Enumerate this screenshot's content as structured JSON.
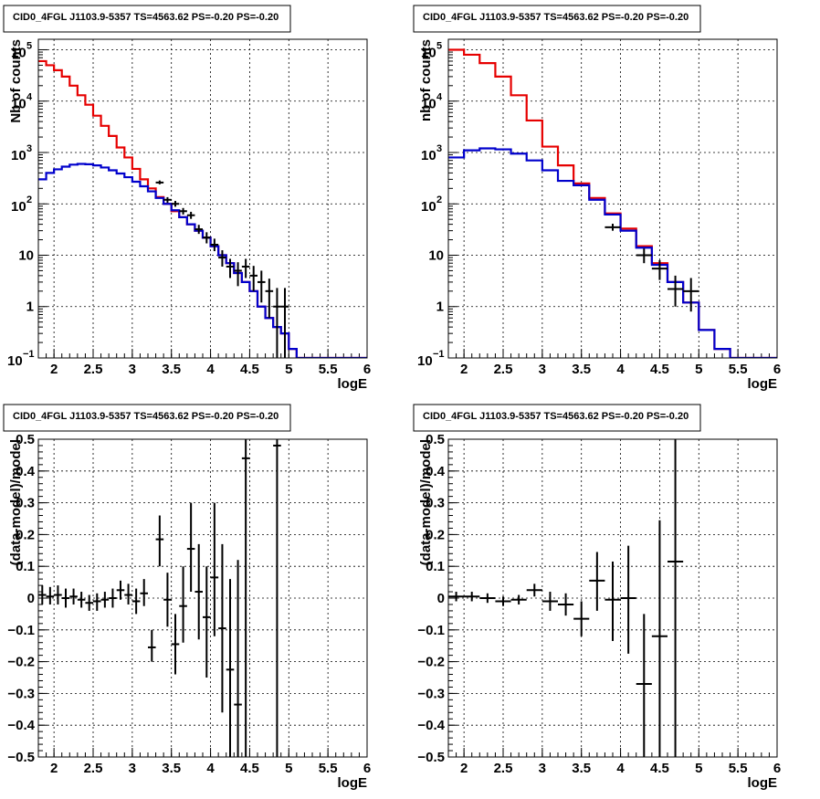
{
  "chart_data": [
    {
      "type": "line",
      "title": "CID0_4FGL J1103.9-5357 TS=4563.62 PS=-0.20 PS=-0.20",
      "xlabel": "logE",
      "ylabel": "Nb of counts",
      "xlim": [
        1.8,
        6
      ],
      "ylim": [
        0.1,
        160000
      ],
      "yscale": "log",
      "grid": true,
      "x_ticks": [
        "2",
        "2.5",
        "3",
        "3.5",
        "4",
        "4.5",
        "5",
        "5.5",
        "6"
      ],
      "y_ticks": [
        {
          "value": 0.1,
          "base": "10",
          "exp": "−1"
        },
        {
          "value": 1,
          "label": "1"
        },
        {
          "value": 10,
          "label": "10"
        },
        {
          "value": 100,
          "base": "10",
          "exp": "2"
        },
        {
          "value": 1000,
          "base": "10",
          "exp": "3"
        },
        {
          "value": 10000,
          "base": "10",
          "exp": "4"
        },
        {
          "value": 100000,
          "base": "10",
          "exp": "5"
        }
      ],
      "bin_edges": [
        1.8,
        1.9,
        2.0,
        2.1,
        2.2,
        2.3,
        2.4,
        2.5,
        2.6,
        2.7,
        2.8,
        2.9,
        3.0,
        3.1,
        3.2,
        3.3,
        3.4,
        3.5,
        3.6,
        3.7,
        3.8,
        3.9,
        4.0,
        4.1,
        4.2,
        4.3,
        4.4,
        4.5,
        4.6,
        4.7,
        4.8,
        4.9,
        5.0,
        5.1,
        5.2,
        5.3,
        5.4,
        5.5,
        5.6,
        5.7,
        5.8,
        5.9,
        6.0
      ],
      "series": [
        {
          "color": "#e60000",
          "style": "step",
          "values": [
            60000,
            50000,
            40000,
            30000,
            20000,
            13000,
            8500,
            5200,
            3300,
            2100,
            1250,
            800,
            480,
            300,
            200,
            135,
            100,
            72,
            55,
            40,
            30,
            22,
            15,
            10,
            7,
            4.5,
            3,
            2,
            1,
            0.6,
            0.4,
            0.3,
            0.15,
            0.1,
            0.1,
            0.1,
            0.1,
            0.1,
            0.1,
            0.1,
            0.1,
            0.1
          ]
        },
        {
          "color": "#0000cc",
          "style": "step",
          "values": [
            300,
            400,
            470,
            530,
            580,
            600,
            590,
            560,
            510,
            450,
            390,
            330,
            270,
            220,
            175,
            130,
            100,
            75,
            55,
            40,
            30,
            22,
            15,
            10,
            7,
            4.5,
            3,
            2,
            1,
            0.6,
            0.4,
            0.3,
            0.15,
            0.1,
            0.1,
            0.1,
            0.1,
            0.1,
            0.1,
            0.1,
            0.1,
            0.1
          ]
        },
        {
          "color": "#000000",
          "style": "points",
          "points": [
            {
              "x": 3.35,
              "y": 260,
              "xerr": 0.05,
              "lo": 240,
              "hi": 285
            },
            {
              "x": 3.45,
              "y": 120,
              "xerr": 0.05,
              "lo": 105,
              "hi": 135
            },
            {
              "x": 3.55,
              "y": 100,
              "xerr": 0.05,
              "lo": 88,
              "hi": 114
            },
            {
              "x": 3.65,
              "y": 72,
              "xerr": 0.05,
              "lo": 62,
              "hi": 83
            },
            {
              "x": 3.75,
              "y": 60,
              "xerr": 0.05,
              "lo": 51,
              "hi": 70
            },
            {
              "x": 3.85,
              "y": 32,
              "xerr": 0.05,
              "lo": 26,
              "hi": 39
            },
            {
              "x": 3.95,
              "y": 22,
              "xerr": 0.05,
              "lo": 17,
              "hi": 28
            },
            {
              "x": 4.05,
              "y": 16,
              "xerr": 0.05,
              "lo": 12,
              "hi": 21
            },
            {
              "x": 4.15,
              "y": 9,
              "xerr": 0.05,
              "lo": 6,
              "hi": 12.5
            },
            {
              "x": 4.25,
              "y": 6,
              "xerr": 0.05,
              "lo": 3.6,
              "hi": 8.5
            },
            {
              "x": 4.35,
              "y": 5,
              "xerr": 0.05,
              "lo": 2.5,
              "hi": 7.3
            },
            {
              "x": 4.45,
              "y": 6,
              "xerr": 0.05,
              "lo": 3.6,
              "hi": 8.5
            },
            {
              "x": 4.55,
              "y": 4,
              "xerr": 0.05,
              "lo": 2.0,
              "hi": 6.2
            },
            {
              "x": 4.65,
              "y": 3,
              "xerr": 0.05,
              "lo": 1.2,
              "hi": 5.0
            },
            {
              "x": 4.75,
              "y": 2,
              "xerr": 0.05,
              "lo": 0.6,
              "hi": 3.5
            },
            {
              "x": 4.85,
              "y": 1,
              "xerr": 0.05,
              "lo": 0.1,
              "hi": 2.3
            },
            {
              "x": 4.95,
              "y": 1,
              "xerr": 0.05,
              "lo": 0.1,
              "hi": 2.3
            }
          ]
        }
      ]
    },
    {
      "type": "line",
      "title": "CID0_4FGL J1103.9-5357 TS=4563.62 PS=-0.20 PS=-0.20",
      "xlabel": "logE",
      "ylabel": "nb of counts",
      "xlim": [
        1.8,
        6
      ],
      "ylim": [
        0.1,
        160000
      ],
      "yscale": "log",
      "grid": true,
      "x_ticks": [
        "2",
        "2.5",
        "3",
        "3.5",
        "4",
        "4.5",
        "5",
        "5.5",
        "6"
      ],
      "y_ticks": [
        {
          "value": 0.1,
          "base": "10",
          "exp": "−1"
        },
        {
          "value": 1,
          "label": "1"
        },
        {
          "value": 10,
          "label": "10"
        },
        {
          "value": 100,
          "base": "10",
          "exp": "2"
        },
        {
          "value": 1000,
          "base": "10",
          "exp": "3"
        },
        {
          "value": 10000,
          "base": "10",
          "exp": "4"
        },
        {
          "value": 100000,
          "base": "10",
          "exp": "5"
        }
      ],
      "bin_edges": [
        1.8,
        2.0,
        2.2,
        2.4,
        2.6,
        2.8,
        3.0,
        3.2,
        3.4,
        3.6,
        3.8,
        4.0,
        4.2,
        4.4,
        4.6,
        4.8,
        5.0,
        5.2,
        5.4,
        5.6,
        5.8,
        6.0
      ],
      "series": [
        {
          "color": "#e60000",
          "style": "step",
          "values": [
            100000,
            80000,
            55000,
            30000,
            13000,
            4200,
            1300,
            560,
            250,
            130,
            65,
            33,
            15,
            7,
            3,
            1.2,
            0.35,
            0.15,
            0.1,
            0.1,
            0.1
          ]
        },
        {
          "color": "#0000cc",
          "style": "step",
          "values": [
            800,
            1100,
            1200,
            1150,
            950,
            700,
            450,
            280,
            230,
            120,
            62,
            30,
            14,
            6.5,
            3,
            1.2,
            0.35,
            0.15,
            0.1,
            0.1,
            0.1
          ]
        },
        {
          "color": "#000000",
          "style": "points",
          "points": [
            {
              "x": 3.9,
              "y": 35,
              "xerr": 0.1,
              "lo": 30,
              "hi": 41
            },
            {
              "x": 4.3,
              "y": 10,
              "xerr": 0.1,
              "lo": 7,
              "hi": 13.5
            },
            {
              "x": 4.5,
              "y": 5.5,
              "xerr": 0.1,
              "lo": 3.3,
              "hi": 8
            },
            {
              "x": 4.7,
              "y": 2.2,
              "xerr": 0.1,
              "lo": 1.0,
              "hi": 4.0
            },
            {
              "x": 4.9,
              "y": 2,
              "xerr": 0.1,
              "lo": 0.8,
              "hi": 3.6
            }
          ]
        }
      ]
    },
    {
      "type": "scatter",
      "title": "CID0_4FGL J1103.9-5357 TS=4563.62 PS=-0.20 PS=-0.20",
      "xlabel": "logE",
      "ylabel": "(data-model)/model",
      "xlim": [
        1.8,
        6
      ],
      "ylim": [
        -0.5,
        0.5
      ],
      "grid": true,
      "x_ticks": [
        "2",
        "2.5",
        "3",
        "3.5",
        "4",
        "4.5",
        "5",
        "5.5",
        "6"
      ],
      "y_ticks": [
        "−0.5",
        "−0.4",
        "−0.3",
        "−0.2",
        "−0.1",
        "0",
        "0.1",
        "0.2",
        "0.3",
        "0.4",
        "0.5"
      ],
      "series": [
        {
          "color": "#000000",
          "style": "points",
          "points": [
            {
              "x": 1.85,
              "y": 0.01,
              "xerr": 0.05,
              "lo": -0.02,
              "hi": 0.04
            },
            {
              "x": 1.95,
              "y": 0.005,
              "xerr": 0.05,
              "lo": -0.02,
              "hi": 0.035
            },
            {
              "x": 2.05,
              "y": 0.01,
              "xerr": 0.05,
              "lo": -0.02,
              "hi": 0.04
            },
            {
              "x": 2.15,
              "y": 0.0,
              "xerr": 0.05,
              "lo": -0.03,
              "hi": 0.03
            },
            {
              "x": 2.25,
              "y": 0.005,
              "xerr": 0.05,
              "lo": -0.02,
              "hi": 0.03
            },
            {
              "x": 2.35,
              "y": -0.005,
              "xerr": 0.05,
              "lo": -0.03,
              "hi": 0.02
            },
            {
              "x": 2.45,
              "y": -0.015,
              "xerr": 0.05,
              "lo": -0.04,
              "hi": 0.01
            },
            {
              "x": 2.55,
              "y": -0.01,
              "xerr": 0.05,
              "lo": -0.04,
              "hi": 0.015
            },
            {
              "x": 2.65,
              "y": -0.005,
              "xerr": 0.05,
              "lo": -0.03,
              "hi": 0.02
            },
            {
              "x": 2.75,
              "y": 0.0,
              "xerr": 0.05,
              "lo": -0.03,
              "hi": 0.03
            },
            {
              "x": 2.85,
              "y": 0.025,
              "xerr": 0.05,
              "lo": -0.005,
              "hi": 0.055
            },
            {
              "x": 2.95,
              "y": 0.01,
              "xerr": 0.05,
              "lo": -0.02,
              "hi": 0.045
            },
            {
              "x": 3.05,
              "y": -0.01,
              "xerr": 0.05,
              "lo": -0.05,
              "hi": 0.03
            },
            {
              "x": 3.15,
              "y": 0.015,
              "xerr": 0.05,
              "lo": -0.025,
              "hi": 0.06
            },
            {
              "x": 3.25,
              "y": -0.155,
              "xerr": 0.05,
              "lo": -0.2,
              "hi": -0.1
            },
            {
              "x": 3.35,
              "y": 0.185,
              "xerr": 0.05,
              "lo": 0.1,
              "hi": 0.26
            },
            {
              "x": 3.45,
              "y": -0.005,
              "xerr": 0.05,
              "lo": -0.09,
              "hi": 0.08
            },
            {
              "x": 3.55,
              "y": -0.145,
              "xerr": 0.05,
              "lo": -0.24,
              "hi": -0.05
            },
            {
              "x": 3.65,
              "y": -0.025,
              "xerr": 0.05,
              "lo": -0.14,
              "hi": 0.1
            },
            {
              "x": 3.75,
              "y": 0.155,
              "xerr": 0.05,
              "lo": 0.02,
              "hi": 0.3
            },
            {
              "x": 3.85,
              "y": 0.02,
              "xerr": 0.05,
              "lo": -0.13,
              "hi": 0.17
            },
            {
              "x": 3.95,
              "y": -0.06,
              "xerr": 0.05,
              "lo": -0.25,
              "hi": 0.1
            },
            {
              "x": 4.05,
              "y": 0.065,
              "xerr": 0.05,
              "lo": -0.12,
              "hi": 0.3
            },
            {
              "x": 4.15,
              "y": -0.095,
              "xerr": 0.05,
              "lo": -0.36,
              "hi": 0.17
            },
            {
              "x": 4.25,
              "y": -0.225,
              "xerr": 0.05,
              "lo": -0.5,
              "hi": 0.06
            },
            {
              "x": 4.35,
              "y": -0.335,
              "xerr": 0.05,
              "lo": -0.5,
              "hi": 0.12
            },
            {
              "x": 4.45,
              "y": 0.44,
              "xerr": 0.05,
              "lo": -0.5,
              "hi": 0.5
            },
            {
              "x": 4.85,
              "y": 0.48,
              "xerr": 0.05,
              "lo": -0.5,
              "hi": 0.5
            }
          ]
        }
      ]
    },
    {
      "type": "scatter",
      "title": "CID0_4FGL J1103.9-5357 TS=4563.62 PS=-0.20 PS=-0.20",
      "xlabel": "logE",
      "ylabel": "(data-model)/model",
      "xlim": [
        1.8,
        6
      ],
      "ylim": [
        -0.5,
        0.5
      ],
      "grid": true,
      "x_ticks": [
        "2",
        "2.5",
        "3",
        "3.5",
        "4",
        "4.5",
        "5",
        "5.5",
        "6"
      ],
      "y_ticks": [
        "−0.5",
        "−0.4",
        "−0.3",
        "−0.2",
        "−0.1",
        "0",
        "0.1",
        "0.2",
        "0.3",
        "0.4",
        "0.5"
      ],
      "series": [
        {
          "color": "#000000",
          "style": "points",
          "points": [
            {
              "x": 1.9,
              "y": 0.005,
              "xerr": 0.1,
              "lo": -0.01,
              "hi": 0.02
            },
            {
              "x": 2.1,
              "y": 0.005,
              "xerr": 0.1,
              "lo": -0.01,
              "hi": 0.02
            },
            {
              "x": 2.3,
              "y": 0.0,
              "xerr": 0.1,
              "lo": -0.015,
              "hi": 0.015
            },
            {
              "x": 2.5,
              "y": -0.01,
              "xerr": 0.1,
              "lo": -0.025,
              "hi": 0.005
            },
            {
              "x": 2.7,
              "y": -0.005,
              "xerr": 0.1,
              "lo": -0.02,
              "hi": 0.01
            },
            {
              "x": 2.9,
              "y": 0.025,
              "xerr": 0.1,
              "lo": 0.005,
              "hi": 0.045
            },
            {
              "x": 3.1,
              "y": -0.01,
              "xerr": 0.1,
              "lo": -0.04,
              "hi": 0.02
            },
            {
              "x": 3.3,
              "y": -0.02,
              "xerr": 0.1,
              "lo": -0.055,
              "hi": 0.015
            },
            {
              "x": 3.5,
              "y": -0.065,
              "xerr": 0.1,
              "lo": -0.12,
              "hi": -0.01
            },
            {
              "x": 3.7,
              "y": 0.055,
              "xerr": 0.1,
              "lo": -0.04,
              "hi": 0.145
            },
            {
              "x": 3.9,
              "y": -0.005,
              "xerr": 0.1,
              "lo": -0.135,
              "hi": 0.115
            },
            {
              "x": 4.1,
              "y": 0.0,
              "xerr": 0.1,
              "lo": -0.175,
              "hi": 0.165
            },
            {
              "x": 4.3,
              "y": -0.27,
              "xerr": 0.1,
              "lo": -0.5,
              "hi": -0.05
            },
            {
              "x": 4.5,
              "y": -0.12,
              "xerr": 0.1,
              "lo": -0.5,
              "hi": 0.245
            },
            {
              "x": 4.7,
              "y": 0.115,
              "xerr": 0.1,
              "lo": -0.5,
              "hi": 0.5
            }
          ]
        }
      ]
    }
  ]
}
